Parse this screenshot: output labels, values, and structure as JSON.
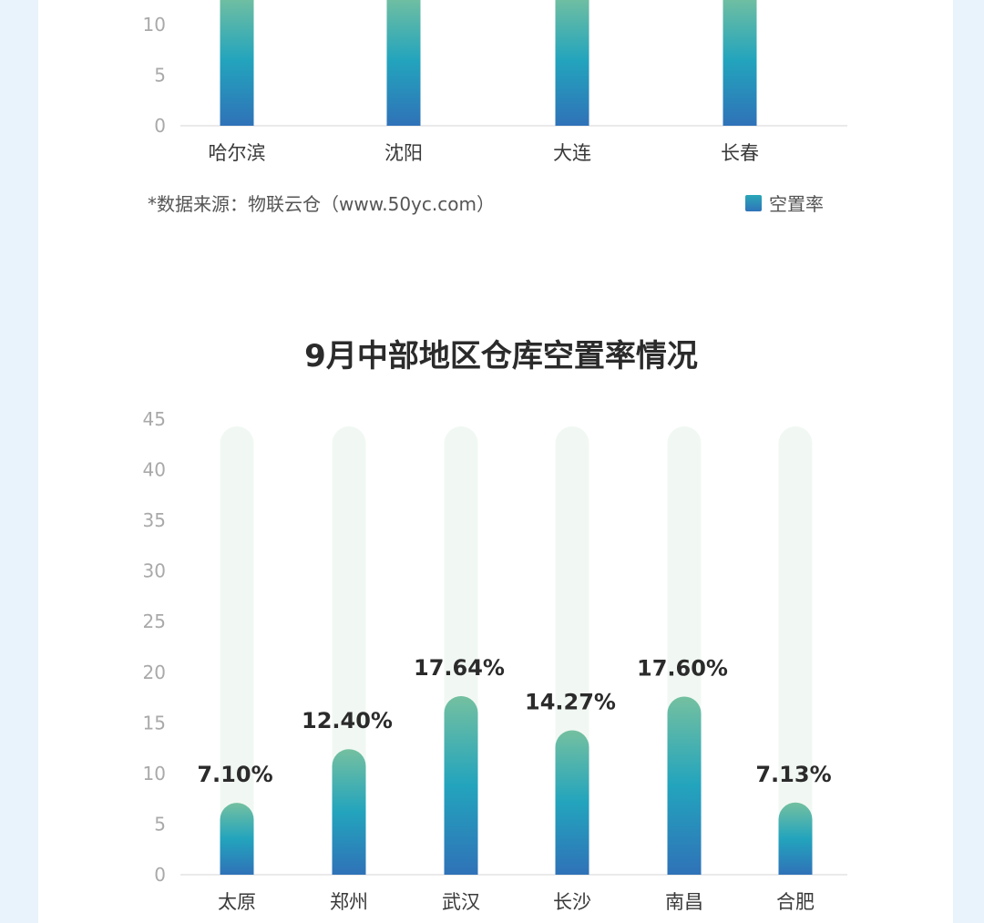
{
  "chart_data": [
    {
      "type": "bar",
      "partial": true,
      "categories": [
        "哈尔滨",
        "沈阳",
        "大连",
        "长春"
      ],
      "yticks": [
        0,
        5,
        10
      ],
      "series": [
        {
          "name": "空置率"
        }
      ],
      "source_note": "*数据来源：物联云仓（www.50yc.com）",
      "legend": {
        "label": "空置率",
        "position": "bottom-right"
      },
      "grid": false
    },
    {
      "type": "bar",
      "title": "9月中部地区仓库空置率情况",
      "categories": [
        "太原",
        "郑州",
        "武汉",
        "长沙",
        "南昌",
        "合肥"
      ],
      "values": [
        7.1,
        12.4,
        17.64,
        14.27,
        17.6,
        7.13
      ],
      "value_labels": [
        "7.10%",
        "12.40%",
        "17.64%",
        "14.27%",
        "17.60%",
        "7.13%"
      ],
      "ylim": [
        0,
        45
      ],
      "yticks": [
        0,
        5,
        10,
        15,
        20,
        25,
        30,
        35,
        40,
        45
      ],
      "grid": false,
      "colors": {
        "bar_top": "#74c0a0",
        "bar_mid": "#23a4bd",
        "bar_bottom": "#2f72b8",
        "track": "#f1f8f3"
      }
    }
  ]
}
